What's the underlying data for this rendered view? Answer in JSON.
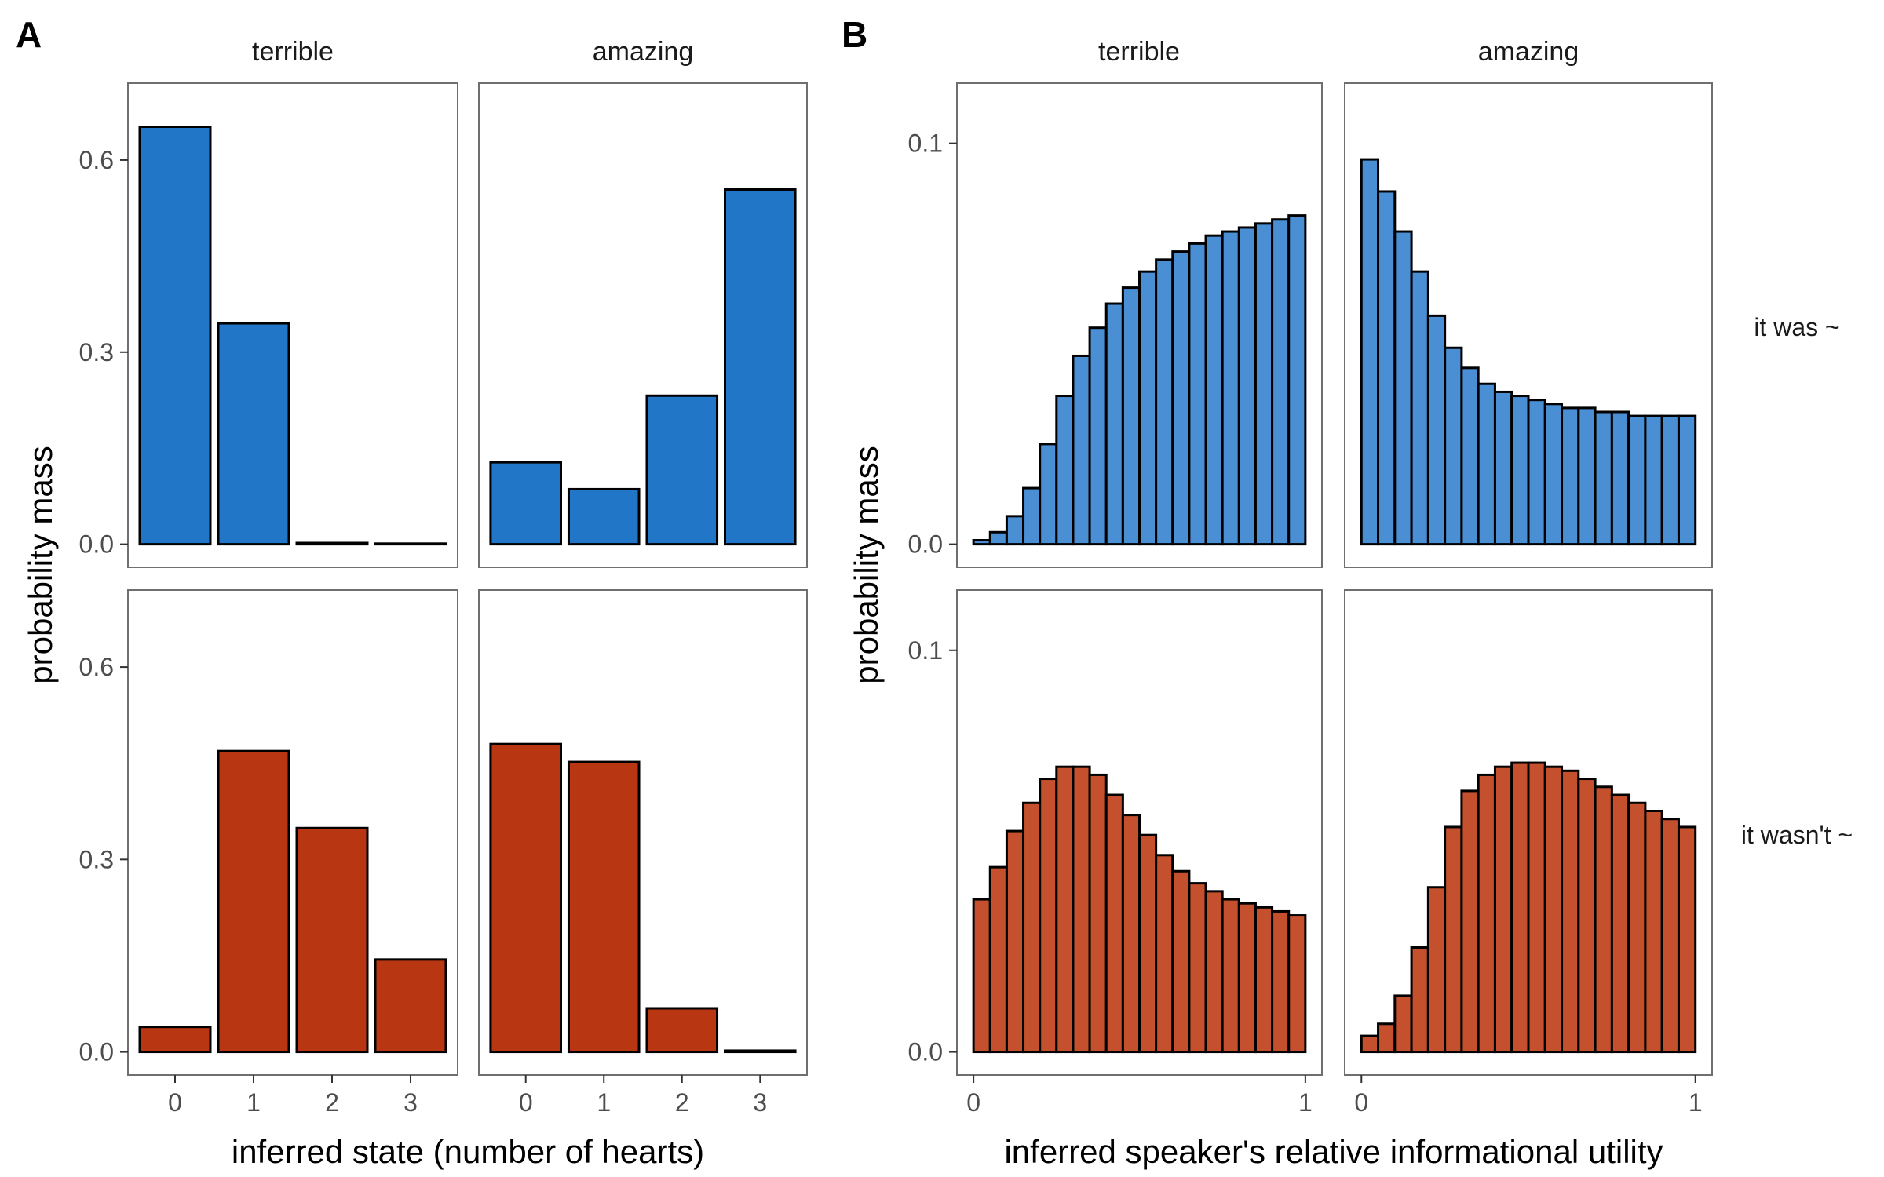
{
  "chart_data": [
    {
      "type": "bar",
      "panel_label": "A",
      "facet_columns": [
        "terrible",
        "amazing"
      ],
      "facet_rows": [
        "it was ~",
        "it wasn't ~"
      ],
      "categories": [
        "0",
        "1",
        "2",
        "3"
      ],
      "xlabel": "inferred state (number of hearts)",
      "ylabel": "probability mass",
      "ylim": [
        0,
        0.72
      ],
      "yticks": [
        0.0,
        0.3,
        0.6
      ],
      "ytick_labels": [
        "0.0",
        "0.3",
        "0.6"
      ],
      "colors": {
        "it was ~": "#2176c8",
        "it wasn't ~": "#b93613"
      },
      "grid": false,
      "series": [
        {
          "column": "terrible",
          "row": "it was ~",
          "values": [
            0.652,
            0.345,
            0.002,
            0.001
          ]
        },
        {
          "column": "amazing",
          "row": "it was ~",
          "values": [
            0.128,
            0.086,
            0.232,
            0.554
          ]
        },
        {
          "column": "terrible",
          "row": "it wasn't ~",
          "values": [
            0.039,
            0.469,
            0.349,
            0.144
          ]
        },
        {
          "column": "amazing",
          "row": "it wasn't ~",
          "values": [
            0.48,
            0.452,
            0.068,
            0.002
          ]
        }
      ]
    },
    {
      "type": "bar",
      "panel_label": "B",
      "facet_columns": [
        "terrible",
        "amazing"
      ],
      "facet_rows": [
        "it was ~",
        "it wasn't ~"
      ],
      "x": [
        0.025,
        0.075,
        0.125,
        0.175,
        0.225,
        0.275,
        0.325,
        0.375,
        0.425,
        0.475,
        0.525,
        0.575,
        0.625,
        0.675,
        0.725,
        0.775,
        0.825,
        0.875,
        0.925,
        0.975
      ],
      "bin_width": 0.05,
      "xlabel": "inferred speaker's relative informational utility",
      "ylabel": "probability mass",
      "xlim": [
        -0.05,
        1.05
      ],
      "xticks": [
        0,
        1
      ],
      "xtick_labels": [
        "0",
        "1"
      ],
      "ylim": [
        0,
        0.115
      ],
      "yticks": [
        0.0,
        0.1
      ],
      "ytick_labels": [
        "0.0",
        "0.1"
      ],
      "colors": {
        "it was ~": "#4a8ed4",
        "it wasn't ~": "#c4502e"
      },
      "grid": false,
      "series": [
        {
          "column": "terrible",
          "row": "it was ~",
          "values": [
            0.001,
            0.003,
            0.007,
            0.014,
            0.025,
            0.037,
            0.047,
            0.054,
            0.06,
            0.064,
            0.068,
            0.071,
            0.073,
            0.075,
            0.077,
            0.078,
            0.079,
            0.08,
            0.081,
            0.082
          ]
        },
        {
          "column": "amazing",
          "row": "it was ~",
          "values": [
            0.096,
            0.088,
            0.078,
            0.068,
            0.057,
            0.049,
            0.044,
            0.04,
            0.038,
            0.037,
            0.036,
            0.035,
            0.034,
            0.034,
            0.033,
            0.033,
            0.032,
            0.032,
            0.032,
            0.032
          ]
        },
        {
          "column": "terrible",
          "row": "it wasn't ~",
          "values": [
            0.038,
            0.046,
            0.055,
            0.062,
            0.068,
            0.071,
            0.071,
            0.069,
            0.064,
            0.059,
            0.054,
            0.049,
            0.045,
            0.042,
            0.04,
            0.038,
            0.037,
            0.036,
            0.035,
            0.034
          ]
        },
        {
          "column": "amazing",
          "row": "it wasn't ~",
          "values": [
            0.004,
            0.007,
            0.014,
            0.026,
            0.041,
            0.056,
            0.065,
            0.069,
            0.071,
            0.072,
            0.072,
            0.071,
            0.07,
            0.068,
            0.066,
            0.064,
            0.062,
            0.06,
            0.058,
            0.056
          ]
        }
      ]
    }
  ]
}
